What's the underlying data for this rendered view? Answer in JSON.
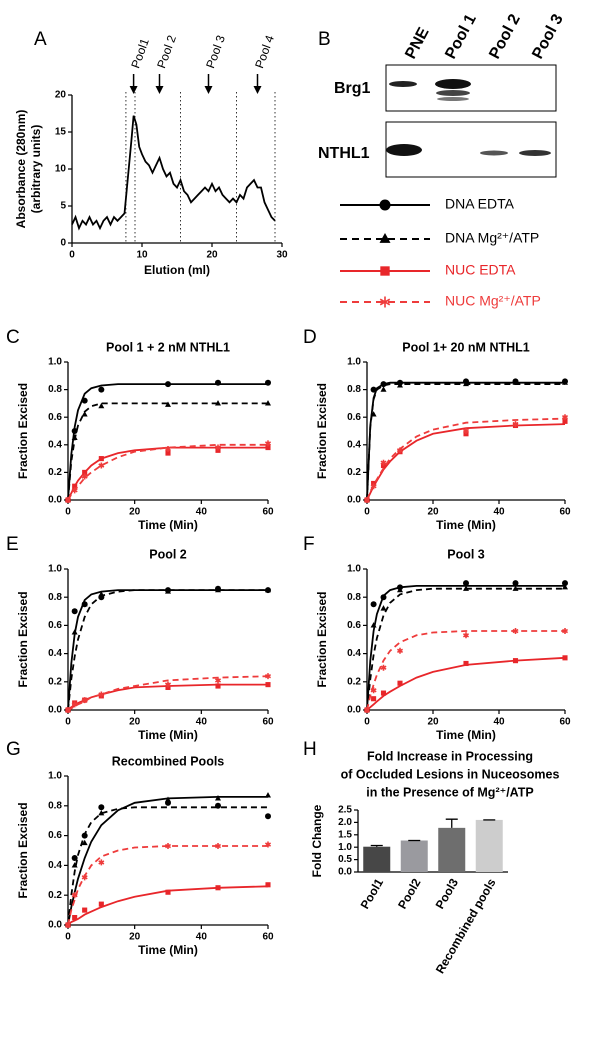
{
  "chart_data": [
    {
      "type": "line",
      "panel": "A",
      "x": [
        0,
        0.5,
        1,
        1.5,
        2,
        2.5,
        3,
        3.5,
        4,
        4.5,
        5,
        5.5,
        6,
        6.5,
        7,
        7.5,
        8,
        8.5,
        8.8,
        9.2,
        9.6,
        10,
        10.5,
        11,
        11.5,
        12,
        12.5,
        13,
        13.5,
        14,
        14.5,
        15,
        15.5,
        16,
        16.5,
        17,
        17.5,
        18,
        18.5,
        19,
        19.5,
        20,
        20.5,
        21,
        21.5,
        22,
        22.5,
        23,
        23.5,
        24,
        24.5,
        25,
        25.5,
        26,
        26.5,
        27,
        27.5,
        28,
        28.5,
        29
      ],
      "values": [
        2.5,
        3.5,
        2,
        3,
        2.5,
        3.5,
        2.5,
        3,
        2,
        3,
        3.5,
        2.5,
        3.5,
        3,
        3.5,
        4,
        9,
        14,
        17.2,
        16,
        13,
        12,
        11,
        10.5,
        9.5,
        10.5,
        11.5,
        10,
        9,
        9.5,
        8,
        7.5,
        8.5,
        7,
        6.5,
        5.5,
        6,
        6.5,
        7,
        7.5,
        7,
        8,
        7,
        7.5,
        6.5,
        6,
        5.5,
        6,
        5.5,
        6.5,
        6,
        7.5,
        8,
        8.5,
        7.5,
        7.5,
        5.5,
        4.5,
        3.5,
        3
      ],
      "color": "#000000",
      "xlim": [
        0,
        30
      ],
      "xticks": [
        0,
        10,
        20,
        30
      ],
      "ylim": [
        0,
        20
      ],
      "yticks": [
        0,
        5,
        10,
        15,
        20
      ],
      "xlabel": "Elution (ml)",
      "ylabel": [
        "Absorbance (280nm)",
        "(arbitrary units)"
      ],
      "dividers": [
        7.7,
        9,
        15.5,
        23.5,
        29
      ],
      "annotations": [
        {
          "text": "Pool1",
          "x": 8.8
        },
        {
          "text": "Pool 2",
          "x": 12.5
        },
        {
          "text": "Pool 3",
          "x": 19.5
        },
        {
          "text": "Pool 4",
          "x": 26.5
        }
      ]
    },
    {
      "type": "scatter",
      "panel": "C",
      "title": "Pool 1 + 2 nM NTHL1",
      "x": [
        0,
        2,
        5,
        10,
        30,
        45,
        60
      ],
      "curve_x": [
        0,
        1,
        2,
        3,
        5,
        7,
        10,
        15,
        20,
        30,
        45,
        60
      ],
      "series": [
        {
          "values": [
            0,
            0.5,
            0.72,
            0.8,
            0.84,
            0.85,
            0.85
          ],
          "curve": [
            0,
            0.33,
            0.53,
            0.65,
            0.77,
            0.81,
            0.83,
            0.84,
            0.84,
            0.84,
            0.84,
            0.84
          ]
        },
        {
          "values": [
            0,
            0.45,
            0.62,
            0.68,
            0.69,
            0.7,
            0.7
          ],
          "curve": [
            0,
            0.28,
            0.44,
            0.54,
            0.64,
            0.68,
            0.7,
            0.7,
            0.7,
            0.7,
            0.7,
            0.7
          ]
        },
        {
          "values": [
            0,
            0.1,
            0.2,
            0.3,
            0.34,
            0.36,
            0.38
          ],
          "curve": [
            0,
            0.05,
            0.1,
            0.14,
            0.2,
            0.25,
            0.3,
            0.34,
            0.36,
            0.38,
            0.38,
            0.38
          ]
        },
        {
          "values": [
            0,
            0.07,
            0.17,
            0.25,
            0.37,
            0.38,
            0.41
          ],
          "curve": [
            0,
            0.04,
            0.07,
            0.1,
            0.16,
            0.2,
            0.25,
            0.31,
            0.35,
            0.38,
            0.4,
            0.4
          ]
        }
      ],
      "xlim": [
        0,
        60
      ],
      "xticks": [
        0,
        20,
        40,
        60
      ],
      "ylim": [
        0,
        1
      ],
      "yticks": [
        {
          "value": 0,
          "label": "0.0"
        },
        {
          "value": 0.2,
          "label": "0.2"
        },
        {
          "value": 0.4,
          "label": "0.4"
        },
        {
          "value": 0.6,
          "label": "0.6"
        },
        {
          "value": 0.8,
          "label": "0.8"
        },
        {
          "value": 1,
          "label": "1.0"
        }
      ],
      "xlabel": "Time (Min)",
      "ylabel": "Fraction Excised"
    },
    {
      "type": "scatter",
      "panel": "D",
      "title": "Pool 1+ 20 nM NTHL1",
      "x": [
        0,
        2,
        5,
        10,
        30,
        45,
        60
      ],
      "curve_x": [
        0,
        1,
        2,
        3,
        5,
        7,
        10,
        15,
        20,
        30,
        45,
        60
      ],
      "series": [
        {
          "values": [
            0,
            0.8,
            0.84,
            0.85,
            0.86,
            0.86,
            0.86
          ],
          "curve": [
            0,
            0.54,
            0.74,
            0.81,
            0.84,
            0.85,
            0.85,
            0.85,
            0.85,
            0.85,
            0.85,
            0.85
          ]
        },
        {
          "values": [
            0,
            0.62,
            0.8,
            0.83,
            0.84,
            0.85,
            0.85
          ],
          "curve": [
            0,
            0.53,
            0.73,
            0.8,
            0.83,
            0.84,
            0.84,
            0.84,
            0.84,
            0.84,
            0.84,
            0.84
          ]
        },
        {
          "values": [
            0,
            0.12,
            0.25,
            0.35,
            0.48,
            0.54,
            0.57
          ],
          "curve": [
            0,
            0.05,
            0.1,
            0.14,
            0.22,
            0.28,
            0.35,
            0.43,
            0.48,
            0.52,
            0.54,
            0.55
          ]
        },
        {
          "values": [
            0,
            0.1,
            0.27,
            0.36,
            0.5,
            0.55,
            0.6
          ],
          "curve": [
            0,
            0.06,
            0.11,
            0.15,
            0.23,
            0.3,
            0.37,
            0.46,
            0.51,
            0.56,
            0.58,
            0.59
          ]
        }
      ],
      "xlim": [
        0,
        60
      ],
      "xticks": [
        0,
        20,
        40,
        60
      ],
      "ylim": [
        0,
        1
      ],
      "yticks": [
        {
          "value": 0,
          "label": "0.0"
        },
        {
          "value": 0.2,
          "label": "0.2"
        },
        {
          "value": 0.4,
          "label": "0.4"
        },
        {
          "value": 0.6,
          "label": "0.6"
        },
        {
          "value": 0.8,
          "label": "0.8"
        },
        {
          "value": 1,
          "label": "1.0"
        }
      ],
      "xlabel": "Time (Min)",
      "ylabel": "Fraction Excised"
    },
    {
      "type": "scatter",
      "panel": "E",
      "title": "Pool 2",
      "x": [
        0,
        2,
        5,
        10,
        30,
        45,
        60
      ],
      "curve_x": [
        0,
        1,
        2,
        3,
        5,
        7,
        10,
        15,
        20,
        30,
        45,
        60
      ],
      "series": [
        {
          "values": [
            0,
            0.7,
            0.75,
            0.8,
            0.85,
            0.86,
            0.85
          ],
          "curve": [
            0,
            0.33,
            0.54,
            0.66,
            0.78,
            0.82,
            0.84,
            0.85,
            0.85,
            0.85,
            0.85,
            0.85
          ]
        },
        {
          "values": [
            0,
            0.55,
            0.75,
            0.82,
            0.84,
            0.85,
            0.85
          ],
          "curve": [
            0,
            0.22,
            0.38,
            0.5,
            0.66,
            0.75,
            0.81,
            0.84,
            0.85,
            0.85,
            0.85,
            0.85
          ]
        },
        {
          "values": [
            0,
            0.05,
            0.07,
            0.1,
            0.16,
            0.17,
            0.18
          ],
          "curve": [
            0,
            0.02,
            0.03,
            0.05,
            0.07,
            0.09,
            0.11,
            0.14,
            0.16,
            0.17,
            0.18,
            0.18
          ]
        },
        {
          "values": [
            0,
            0.04,
            0.07,
            0.11,
            0.18,
            0.21,
            0.24
          ],
          "curve": [
            0,
            0.01,
            0.03,
            0.04,
            0.06,
            0.09,
            0.11,
            0.15,
            0.17,
            0.21,
            0.23,
            0.24
          ]
        }
      ],
      "xlim": [
        0,
        60
      ],
      "xticks": [
        0,
        20,
        40,
        60
      ],
      "ylim": [
        0,
        1
      ],
      "yticks": [
        {
          "value": 0,
          "label": "0.0"
        },
        {
          "value": 0.2,
          "label": "0.2"
        },
        {
          "value": 0.4,
          "label": "0.4"
        },
        {
          "value": 0.6,
          "label": "0.6"
        },
        {
          "value": 0.8,
          "label": "0.8"
        },
        {
          "value": 1,
          "label": "1.0"
        }
      ],
      "xlabel": "Time (Min)",
      "ylabel": "Fraction Excised"
    },
    {
      "type": "scatter",
      "panel": "F",
      "title": "Pool 3",
      "x": [
        0,
        2,
        5,
        10,
        30,
        45,
        60
      ],
      "curve_x": [
        0,
        1,
        2,
        3,
        5,
        7,
        10,
        15,
        20,
        30,
        45,
        60
      ],
      "series": [
        {
          "values": [
            0,
            0.75,
            0.8,
            0.87,
            0.9,
            0.9,
            0.9
          ],
          "curve": [
            0,
            0.35,
            0.56,
            0.68,
            0.81,
            0.85,
            0.87,
            0.88,
            0.88,
            0.88,
            0.88,
            0.88
          ]
        },
        {
          "values": [
            0,
            0.6,
            0.72,
            0.85,
            0.86,
            0.86,
            0.87
          ],
          "curve": [
            0,
            0.22,
            0.39,
            0.51,
            0.67,
            0.76,
            0.82,
            0.85,
            0.86,
            0.86,
            0.86,
            0.86
          ]
        },
        {
          "values": [
            0,
            0.08,
            0.12,
            0.19,
            0.33,
            0.35,
            0.37
          ],
          "curve": [
            0,
            0.02,
            0.04,
            0.06,
            0.1,
            0.13,
            0.17,
            0.23,
            0.27,
            0.32,
            0.35,
            0.37
          ]
        },
        {
          "values": [
            0,
            0.14,
            0.3,
            0.42,
            0.53,
            0.56,
            0.56
          ],
          "curve": [
            0,
            0.1,
            0.18,
            0.25,
            0.35,
            0.42,
            0.48,
            0.53,
            0.55,
            0.56,
            0.56,
            0.56
          ]
        }
      ],
      "xlim": [
        0,
        60
      ],
      "xticks": [
        0,
        20,
        40,
        60
      ],
      "ylim": [
        0,
        1
      ],
      "yticks": [
        {
          "value": 0,
          "label": "0.0"
        },
        {
          "value": 0.2,
          "label": "0.2"
        },
        {
          "value": 0.4,
          "label": "0.4"
        },
        {
          "value": 0.6,
          "label": "0.6"
        },
        {
          "value": 0.8,
          "label": "0.8"
        },
        {
          "value": 1,
          "label": "1.0"
        }
      ],
      "xlabel": "Time (Min)",
      "ylabel": "Fraction Excised"
    },
    {
      "type": "scatter",
      "panel": "G",
      "title": "Recombined Pools",
      "x": [
        0,
        2,
        5,
        10,
        30,
        45,
        60
      ],
      "curve_x": [
        0,
        1,
        2,
        3,
        5,
        7,
        10,
        15,
        20,
        30,
        45,
        60
      ],
      "series": [
        {
          "values": [
            0,
            0.45,
            0.6,
            0.79,
            0.82,
            0.8,
            0.73
          ],
          "curve": [
            0,
            0.12,
            0.22,
            0.31,
            0.45,
            0.56,
            0.67,
            0.77,
            0.82,
            0.85,
            0.86,
            0.86
          ]
        },
        {
          "values": [
            0,
            0.4,
            0.55,
            0.75,
            0.84,
            0.85,
            0.87
          ],
          "curve": [
            0,
            0.2,
            0.36,
            0.47,
            0.61,
            0.69,
            0.75,
            0.78,
            0.79,
            0.79,
            0.79,
            0.79
          ]
        },
        {
          "values": [
            0,
            0.05,
            0.1,
            0.14,
            0.22,
            0.25,
            0.27
          ],
          "curve": [
            0,
            0.02,
            0.03,
            0.04,
            0.07,
            0.09,
            0.12,
            0.16,
            0.19,
            0.23,
            0.25,
            0.26
          ]
        },
        {
          "values": [
            0,
            0.2,
            0.32,
            0.42,
            0.53,
            0.53,
            0.54
          ],
          "curve": [
            0,
            0.1,
            0.17,
            0.24,
            0.33,
            0.4,
            0.46,
            0.5,
            0.52,
            0.53,
            0.53,
            0.53
          ]
        }
      ],
      "xlim": [
        0,
        60
      ],
      "xticks": [
        0,
        20,
        40,
        60
      ],
      "ylim": [
        0,
        1
      ],
      "yticks": [
        {
          "value": 0,
          "label": "0.0"
        },
        {
          "value": 0.2,
          "label": "0.2"
        },
        {
          "value": 0.4,
          "label": "0.4"
        },
        {
          "value": 0.6,
          "label": "0.6"
        },
        {
          "value": 0.8,
          "label": "0.8"
        },
        {
          "value": 1,
          "label": "1.0"
        }
      ],
      "xlabel": "Time (Min)",
      "ylabel": "Fraction Excised"
    },
    {
      "type": "bar",
      "panel": "H",
      "title": [
        "Fold Increase in Processing",
        "of Occluded Lesions in Nuceosomes",
        "in the Presence of Mg²⁺/ATP"
      ],
      "categories": [
        "Pool1",
        "Pool2",
        "Pool3",
        "Recombined pools"
      ],
      "values": [
        1.02,
        1.27,
        1.78,
        2.1
      ],
      "errors": [
        0.05,
        0,
        0.35,
        0
      ],
      "colors": [
        "#474747",
        "#9a9a9f",
        "#6e6e6e",
        "#cdcdcd"
      ],
      "ylim": [
        0,
        2.5
      ],
      "yticks": [
        {
          "value": 0,
          "label": "0.0"
        },
        {
          "value": 0.5,
          "label": "0.5"
        },
        {
          "value": 1,
          "label": "1.0"
        },
        {
          "value": 1.5,
          "label": "1.5"
        },
        {
          "value": 2,
          "label": "2.0"
        },
        {
          "value": 2.5,
          "label": "2.5"
        }
      ],
      "ylabel": "Fold Change"
    }
  ],
  "blot": {
    "panel": "B",
    "lanes": [
      "PNE",
      "Pool 1",
      "Pool 2",
      "Pool 3"
    ],
    "rows": [
      "Brg1",
      "NTHL1"
    ]
  },
  "legend": [
    {
      "name": "DNA EDTA",
      "color": "#000000",
      "dash": false,
      "marker": "circle"
    },
    {
      "name": "DNA Mg²⁺/ATP",
      "color": "#000000",
      "dash": true,
      "marker": "triangle"
    },
    {
      "name": "NUC EDTA",
      "color": "#e8262a",
      "dash": false,
      "marker": "square"
    },
    {
      "name": "NUC Mg²⁺/ATP",
      "color": "#ee3b3b",
      "dash": true,
      "marker": "asterisk"
    }
  ]
}
